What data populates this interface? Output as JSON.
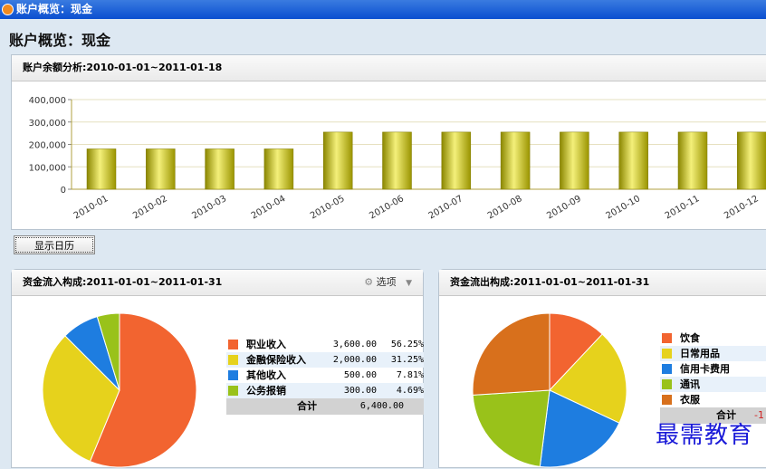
{
  "window": {
    "title": "账户概览：现金"
  },
  "page": {
    "heading": "账户概览：现金"
  },
  "balance_panel": {
    "title": "账户余额分析:2010-01-01~2011-01-18"
  },
  "calendar_button": "显示日历",
  "inflow_panel": {
    "title": "资金流入构成:2011-01-01~2011-01-31",
    "options_label": "选项",
    "items": [
      {
        "label": "职业收入",
        "value": "3,600.00",
        "pct": "56.25%",
        "color": "#f26430"
      },
      {
        "label": "金融保险收入",
        "value": "2,000.00",
        "pct": "31.25%",
        "color": "#e6d21c"
      },
      {
        "label": "其他收入",
        "value": "500.00",
        "pct": "7.81%",
        "color": "#1e7de0"
      },
      {
        "label": "公务报销",
        "value": "300.00",
        "pct": "4.69%",
        "color": "#99c21a"
      }
    ],
    "total_label": "合计",
    "total_value": "6,400.00"
  },
  "outflow_panel": {
    "title": "资金流出构成:2011-01-01~2011-01-31",
    "items": [
      {
        "label": "饮食",
        "color": "#f26430",
        "share": 0.12
      },
      {
        "label": "日常用品",
        "color": "#e6d21c",
        "share": 0.2
      },
      {
        "label": "信用卡费用",
        "color": "#1e7de0",
        "share": 0.2
      },
      {
        "label": "通讯",
        "color": "#99c21a",
        "share": 0.22
      },
      {
        "label": "衣服",
        "color": "#d8701c",
        "share": 0.26
      }
    ],
    "total_label": "合计",
    "total_value_partial": "-1"
  },
  "watermark": "最需教育",
  "chart_data": {
    "type": "bar",
    "title": "账户余额分析:2010-01-01~2011-01-18",
    "categories": [
      "2010-01",
      "2010-02",
      "2010-03",
      "2010-04",
      "2010-05",
      "2010-06",
      "2010-07",
      "2010-08",
      "2010-09",
      "2010-10",
      "2010-11",
      "2010-12"
    ],
    "values": [
      180000,
      180000,
      180000,
      180000,
      255000,
      255000,
      255000,
      255000,
      255000,
      255000,
      255000,
      255000
    ],
    "ylim": [
      0,
      400000
    ],
    "yticks": [
      "0",
      "100,000",
      "200,000",
      "300,000",
      "400,000"
    ],
    "grid": true,
    "bar_color": "#d4cc10"
  }
}
